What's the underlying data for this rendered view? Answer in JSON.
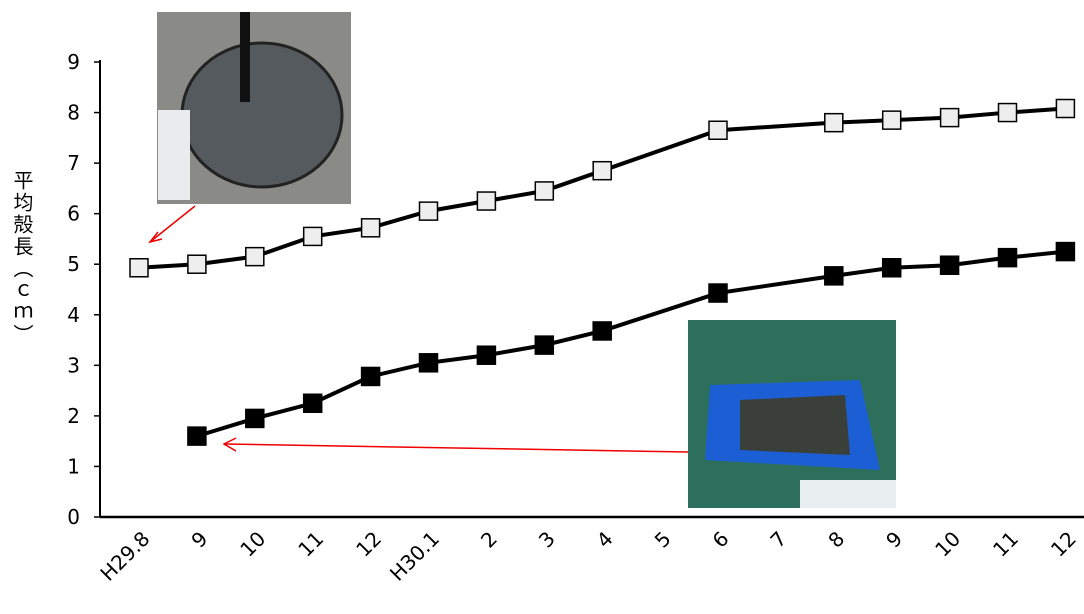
{
  "chart_data": {
    "type": "line",
    "y_label": "平均殻長（ｃｍ）",
    "categories": [
      "H29.8",
      "9",
      "10",
      "11",
      "12",
      "H30.1",
      "2",
      "3",
      "4",
      "5",
      "6",
      "7",
      "8",
      "9",
      "10",
      "11",
      "12"
    ],
    "series": [
      {
        "color": "#eeeeee",
        "values": [
          4.93,
          5.0,
          5.15,
          5.55,
          5.72,
          6.05,
          6.25,
          6.45,
          6.85,
          null,
          7.65,
          null,
          7.8,
          7.85,
          7.9,
          8.0,
          8.08
        ]
      },
      {
        "color": "#000000",
        "values": [
          null,
          1.6,
          1.95,
          2.25,
          2.78,
          3.05,
          3.2,
          3.4,
          3.68,
          null,
          4.43,
          null,
          4.77,
          4.93,
          4.98,
          5.13,
          5.25
        ]
      }
    ],
    "ylim": [
      0,
      9
    ],
    "yticks": [
      0,
      1,
      2,
      3,
      4,
      5,
      6,
      7,
      8,
      9
    ]
  }
}
